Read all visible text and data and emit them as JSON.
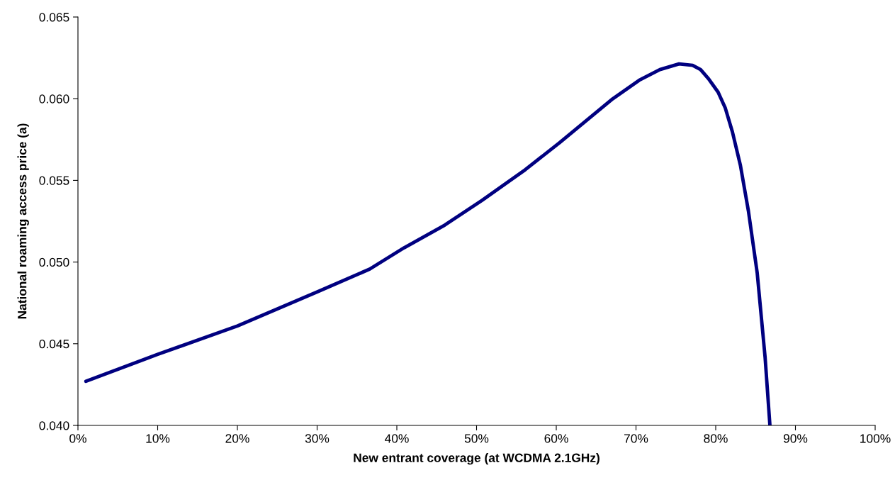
{
  "chart_data": {
    "type": "line",
    "xlabel": "New entrant coverage (at WCDMA 2.1GHz)",
    "ylabel": "National roaming access price (a)",
    "xlim": [
      0,
      100
    ],
    "ylim": [
      0.04,
      0.065
    ],
    "xticks": [
      {
        "value": 0,
        "label": "0%"
      },
      {
        "value": 10,
        "label": "10%"
      },
      {
        "value": 20,
        "label": "20%"
      },
      {
        "value": 30,
        "label": "30%"
      },
      {
        "value": 40,
        "label": "40%"
      },
      {
        "value": 50,
        "label": "50%"
      },
      {
        "value": 60,
        "label": "60%"
      },
      {
        "value": 70,
        "label": "70%"
      },
      {
        "value": 80,
        "label": "80%"
      },
      {
        "value": 90,
        "label": "90%"
      },
      {
        "value": 100,
        "label": "100%"
      }
    ],
    "yticks": [
      {
        "value": 0.04,
        "label": "0.040"
      },
      {
        "value": 0.045,
        "label": "0.045"
      },
      {
        "value": 0.05,
        "label": "0.050"
      },
      {
        "value": 0.055,
        "label": "0.055"
      },
      {
        "value": 0.06,
        "label": "0.060"
      },
      {
        "value": 0.065,
        "label": "0.065"
      }
    ],
    "grid": false,
    "legend": false,
    "marker": "none",
    "line_style": "solid",
    "series": [
      {
        "color": "#000080",
        "x": [
          1,
          10,
          20,
          30,
          36.6,
          40.9,
          46,
          50.7,
          56.1,
          60.4,
          67.1,
          70.4,
          73,
          75.4,
          77.1,
          78.1,
          79.1,
          80.3,
          81.2,
          82.1,
          83.1,
          84.1,
          85.2,
          86.2,
          86.8
        ],
        "values": [
          0.0427,
          0.04435,
          0.04609,
          0.04817,
          0.04957,
          0.05087,
          0.05226,
          0.05378,
          0.05565,
          0.0573,
          0.06,
          0.06113,
          0.06178,
          0.06213,
          0.06204,
          0.06178,
          0.06122,
          0.0604,
          0.05943,
          0.05796,
          0.05591,
          0.05313,
          0.04935,
          0.04413,
          0.04
        ]
      }
    ]
  }
}
